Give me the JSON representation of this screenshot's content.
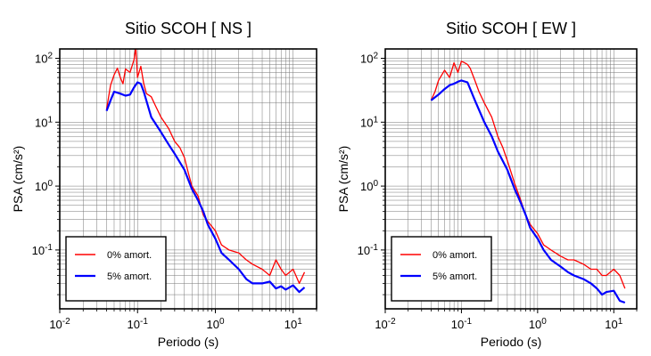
{
  "chart_data": [
    {
      "type": "line",
      "title": "Sitio SCOH [ NS ]",
      "xlabel": "Periodo (s)",
      "ylabel": "PSA (cm/s²)",
      "xscale": "log",
      "yscale": "log",
      "xlim": [
        0.01,
        20
      ],
      "ylim": [
        0.012,
        140
      ],
      "grid": true,
      "legend_position": "bottom-left",
      "series": [
        {
          "name": "0% amort.",
          "color": "#ff0000",
          "x": [
            0.04,
            0.045,
            0.05,
            0.055,
            0.06,
            0.065,
            0.07,
            0.08,
            0.09,
            0.095,
            0.1,
            0.11,
            0.12,
            0.13,
            0.15,
            0.17,
            0.2,
            0.25,
            0.3,
            0.35,
            0.4,
            0.45,
            0.5,
            0.6,
            0.7,
            0.8,
            1.0,
            1.2,
            1.5,
            2.0,
            2.5,
            3.0,
            4.0,
            5.0,
            6.0,
            7.0,
            8.0,
            10.0,
            12.0,
            14.0
          ],
          "y": [
            16,
            38,
            55,
            70,
            50,
            40,
            68,
            60,
            95,
            150,
            50,
            75,
            40,
            28,
            25,
            18,
            12,
            8,
            5,
            4,
            2.8,
            1.6,
            1.0,
            0.7,
            0.35,
            0.28,
            0.2,
            0.12,
            0.1,
            0.09,
            0.07,
            0.06,
            0.05,
            0.04,
            0.07,
            0.05,
            0.04,
            0.05,
            0.03,
            0.045
          ]
        },
        {
          "name": "5% amort.",
          "color": "#0000ff",
          "x": [
            0.04,
            0.045,
            0.05,
            0.06,
            0.07,
            0.08,
            0.09,
            0.1,
            0.11,
            0.12,
            0.15,
            0.2,
            0.25,
            0.3,
            0.4,
            0.5,
            0.6,
            0.7,
            0.8,
            1.0,
            1.2,
            1.5,
            2.0,
            2.5,
            3.0,
            4.0,
            5.0,
            6.0,
            7.0,
            8.0,
            10.0,
            12.0,
            14.0
          ],
          "y": [
            15,
            22,
            30,
            28,
            26,
            27,
            35,
            42,
            40,
            30,
            12,
            7,
            4.5,
            3.2,
            1.8,
            0.9,
            0.6,
            0.4,
            0.25,
            0.15,
            0.09,
            0.07,
            0.05,
            0.035,
            0.03,
            0.03,
            0.032,
            0.025,
            0.027,
            0.024,
            0.028,
            0.022,
            0.026
          ]
        }
      ]
    },
    {
      "type": "line",
      "title": "Sitio SCOH [ EW ]",
      "xlabel": "Periodo (s)",
      "ylabel": "PSA (cm/s²)",
      "xscale": "log",
      "yscale": "log",
      "xlim": [
        0.01,
        20
      ],
      "ylim": [
        0.012,
        140
      ],
      "grid": true,
      "legend_position": "bottom-left",
      "series": [
        {
          "name": "0% amort.",
          "color": "#ff0000",
          "x": [
            0.04,
            0.045,
            0.05,
            0.06,
            0.07,
            0.08,
            0.09,
            0.1,
            0.11,
            0.12,
            0.13,
            0.15,
            0.17,
            0.2,
            0.25,
            0.3,
            0.35,
            0.4,
            0.5,
            0.6,
            0.7,
            0.8,
            1.0,
            1.2,
            1.5,
            2.0,
            2.5,
            3.0,
            4.0,
            5.0,
            6.0,
            7.0,
            8.0,
            10.0,
            12.0,
            14.0
          ],
          "y": [
            22,
            30,
            45,
            65,
            50,
            85,
            60,
            90,
            85,
            80,
            70,
            45,
            30,
            20,
            12,
            6,
            4,
            2.5,
            1.1,
            0.6,
            0.35,
            0.25,
            0.18,
            0.12,
            0.1,
            0.08,
            0.07,
            0.07,
            0.06,
            0.05,
            0.05,
            0.04,
            0.04,
            0.05,
            0.04,
            0.025
          ]
        },
        {
          "name": "5% amort.",
          "color": "#0000ff",
          "x": [
            0.04,
            0.05,
            0.06,
            0.07,
            0.08,
            0.09,
            0.1,
            0.12,
            0.15,
            0.2,
            0.25,
            0.3,
            0.4,
            0.5,
            0.6,
            0.7,
            0.8,
            1.0,
            1.2,
            1.5,
            2.0,
            2.5,
            3.0,
            4.0,
            5.0,
            6.0,
            7.0,
            8.0,
            10.0,
            12.0,
            14.0
          ],
          "y": [
            22,
            27,
            33,
            38,
            40,
            43,
            45,
            42,
            22,
            10,
            6,
            3.5,
            1.8,
            0.9,
            0.55,
            0.35,
            0.22,
            0.15,
            0.1,
            0.07,
            0.055,
            0.045,
            0.04,
            0.035,
            0.03,
            0.025,
            0.02,
            0.022,
            0.023,
            0.016,
            0.015
          ]
        }
      ]
    }
  ]
}
